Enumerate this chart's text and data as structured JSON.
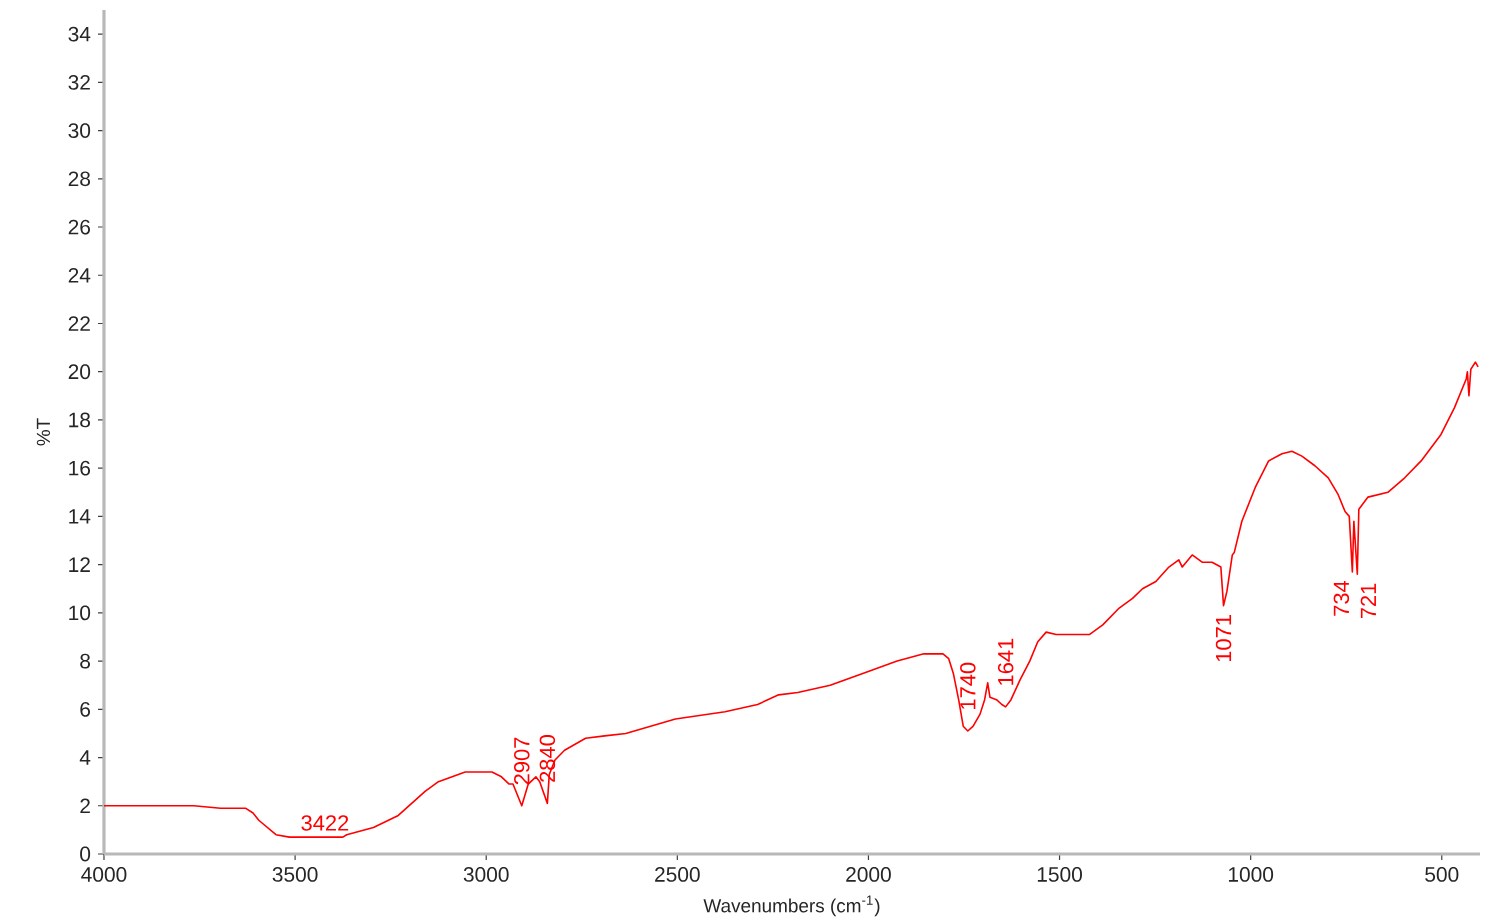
{
  "chart_data": {
    "type": "line",
    "xlabel": "Wavenumbers (cm$^{-1}$)",
    "ylabel": "%T",
    "xlim": [
      4000,
      400
    ],
    "ylim": [
      0,
      35
    ],
    "xticks": [
      4000,
      3500,
      3000,
      2500,
      2000,
      1500,
      1000,
      500
    ],
    "yticks": [
      0,
      2,
      4,
      6,
      8,
      10,
      12,
      14,
      16,
      18,
      20,
      22,
      24,
      26,
      28,
      30,
      32,
      34
    ],
    "x": [
      4000,
      3900,
      3765,
      3695,
      3630,
      3610,
      3595,
      3550,
      3515,
      3375,
      3365,
      3295,
      3230,
      3160,
      3125,
      3055,
      2985,
      2960,
      2940,
      2930,
      2907,
      2890,
      2870,
      2860,
      2840,
      2835,
      2820,
      2795,
      2740,
      2690,
      2635,
      2505,
      2375,
      2290,
      2235,
      2185,
      2100,
      1995,
      1925,
      1855,
      1805,
      1790,
      1778,
      1764,
      1752,
      1740,
      1726,
      1708,
      1696,
      1688,
      1682,
      1665,
      1651,
      1641,
      1627,
      1604,
      1578,
      1557,
      1535,
      1509,
      1474,
      1422,
      1387,
      1344,
      1309,
      1283,
      1248,
      1214,
      1188,
      1179,
      1153,
      1127,
      1101,
      1078,
      1071,
      1062,
      1048,
      1043,
      1023,
      988,
      953,
      918,
      892,
      866,
      832,
      797,
      771,
      753,
      742,
      734,
      730,
      721,
      717,
      693,
      641,
      597,
      554,
      502,
      467,
      436,
      433,
      429,
      424,
      412,
      405
    ],
    "series": [
      {
        "color": "#ff0000",
        "values": [
          2.0,
          2.0,
          2.0,
          1.9,
          1.9,
          1.7,
          1.4,
          0.8,
          0.7,
          0.7,
          0.8,
          1.1,
          1.6,
          2.6,
          3.0,
          3.4,
          3.4,
          3.2,
          2.9,
          2.9,
          2.0,
          2.9,
          3.2,
          3.0,
          2.1,
          3.3,
          3.9,
          4.3,
          4.8,
          4.9,
          5.0,
          5.6,
          5.9,
          6.2,
          6.6,
          6.7,
          7.0,
          7.6,
          8.0,
          8.3,
          8.3,
          8.1,
          7.5,
          6.4,
          5.3,
          5.1,
          5.3,
          5.8,
          6.4,
          7.1,
          6.5,
          6.4,
          6.2,
          6.1,
          6.4,
          7.2,
          8.0,
          8.8,
          9.2,
          9.1,
          9.1,
          9.1,
          9.5,
          10.2,
          10.6,
          11.0,
          11.3,
          11.9,
          12.2,
          11.9,
          12.4,
          12.1,
          12.1,
          11.9,
          10.3,
          10.9,
          12.4,
          12.5,
          13.8,
          15.2,
          16.3,
          16.6,
          16.7,
          16.5,
          16.1,
          15.6,
          14.9,
          14.2,
          14.0,
          11.7,
          13.8,
          11.6,
          14.3,
          14.8,
          15.0,
          15.6,
          16.3,
          17.4,
          18.5,
          19.7,
          20.0,
          19.0,
          20.1,
          20.4,
          20.2
        ]
      }
    ],
    "annotations": [
      {
        "text": "3422",
        "x": 3422,
        "y": 0.7
      },
      {
        "text": "2907",
        "x": 2907,
        "y": 2.0
      },
      {
        "text": "2840",
        "x": 2840,
        "y": 2.1
      },
      {
        "text": "1740",
        "x": 1740,
        "y": 5.1
      },
      {
        "text": "1641",
        "x": 1641,
        "y": 6.1
      },
      {
        "text": "1071",
        "x": 1071,
        "y": 10.3
      },
      {
        "text": "734",
        "x": 734,
        "y": 11.7
      },
      {
        "text": "721",
        "x": 721,
        "y": 11.6
      }
    ]
  }
}
